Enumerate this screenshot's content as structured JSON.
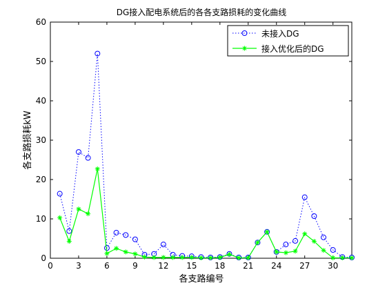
{
  "chart_data": {
    "type": "line",
    "title": "DG接入配电系统后的各各支路损耗的变化曲线",
    "xlabel": "各支路编号",
    "ylabel": "各支路损耗kW",
    "xlim": [
      0,
      32
    ],
    "ylim": [
      0,
      60
    ],
    "xticks": [
      "0",
      "3",
      "6",
      "9",
      "12",
      "15",
      "18",
      "21",
      "24",
      "27",
      "30"
    ],
    "yticks": [
      "0",
      "10",
      "20",
      "30",
      "40",
      "50",
      "60"
    ],
    "grid": false,
    "legend_position": "top-right",
    "x": [
      1,
      2,
      3,
      4,
      5,
      6,
      7,
      8,
      9,
      10,
      11,
      12,
      13,
      14,
      15,
      16,
      17,
      18,
      19,
      20,
      21,
      22,
      23,
      24,
      25,
      26,
      27,
      28,
      29,
      30,
      31,
      32
    ],
    "series": [
      {
        "name": "未接入DG",
        "color": "#0000ff",
        "line_style": "dotted",
        "marker": "circle",
        "values": [
          16.4,
          6.9,
          27.0,
          25.5,
          52.0,
          2.6,
          6.5,
          5.9,
          4.8,
          0.9,
          1.1,
          3.5,
          0.9,
          0.6,
          0.5,
          0.3,
          0.2,
          0.3,
          1.1,
          0.2,
          0.2,
          4.0,
          6.7,
          1.6,
          3.5,
          4.4,
          15.5,
          10.7,
          5.3,
          2.1,
          0.3,
          0.2
        ]
      },
      {
        "name": "接入优化后的DG",
        "color": "#00ff00",
        "line_style": "solid",
        "marker": "star",
        "values": [
          10.3,
          4.3,
          12.5,
          11.3,
          22.7,
          1.2,
          2.5,
          1.6,
          1.1,
          0.3,
          0.2,
          0.2,
          0.2,
          0.2,
          0.2,
          0.1,
          0.1,
          0.2,
          1.0,
          0.1,
          0.1,
          4.0,
          6.7,
          1.6,
          1.4,
          1.8,
          6.2,
          4.3,
          2.0,
          0.1,
          0.1,
          0.1
        ]
      }
    ]
  }
}
